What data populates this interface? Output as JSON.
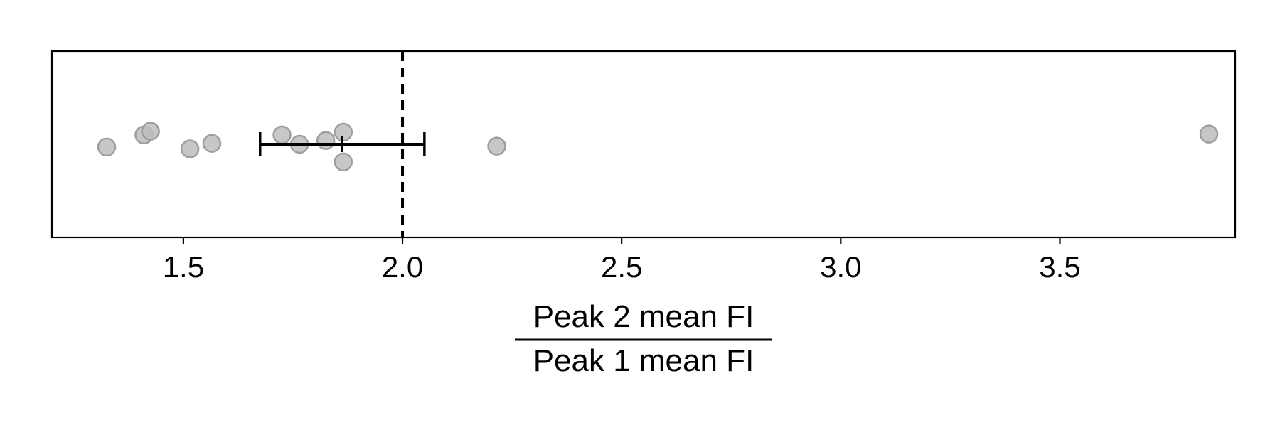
{
  "chart_data": {
    "type": "scatter",
    "title": "",
    "xlabel_numerator": "Peak 2 mean FI",
    "xlabel_denominator": "Peak 1 mean FI",
    "xlim": [
      1.2,
      3.9
    ],
    "ylim": [
      -1,
      1
    ],
    "x_ticks": [
      1.5,
      2.0,
      2.5,
      3.0,
      3.5
    ],
    "x_tick_labels": [
      "1.5",
      "2.0",
      "2.5",
      "3.0",
      "3.5"
    ],
    "show_y_axis": false,
    "grid": false,
    "reference_line": {
      "x": 2.0,
      "style": "dashed"
    },
    "points": [
      {
        "x": 1.325,
        "y": -0.03
      },
      {
        "x": 1.41,
        "y": 0.1
      },
      {
        "x": 1.425,
        "y": 0.14
      },
      {
        "x": 1.515,
        "y": -0.05
      },
      {
        "x": 1.565,
        "y": 0.01
      },
      {
        "x": 1.725,
        "y": 0.1
      },
      {
        "x": 1.765,
        "y": 0.0
      },
      {
        "x": 1.825,
        "y": 0.04
      },
      {
        "x": 1.865,
        "y": 0.13
      },
      {
        "x": 1.865,
        "y": -0.19
      },
      {
        "x": 2.215,
        "y": -0.02
      },
      {
        "x": 3.84,
        "y": 0.11
      }
    ],
    "point_color": "#bdbdbd",
    "point_edge_color": "#9e9e9e",
    "error_bar": {
      "center": 1.862,
      "low": 1.675,
      "high": 2.05,
      "y": 0.0
    },
    "error_bar_color": "#000000"
  }
}
